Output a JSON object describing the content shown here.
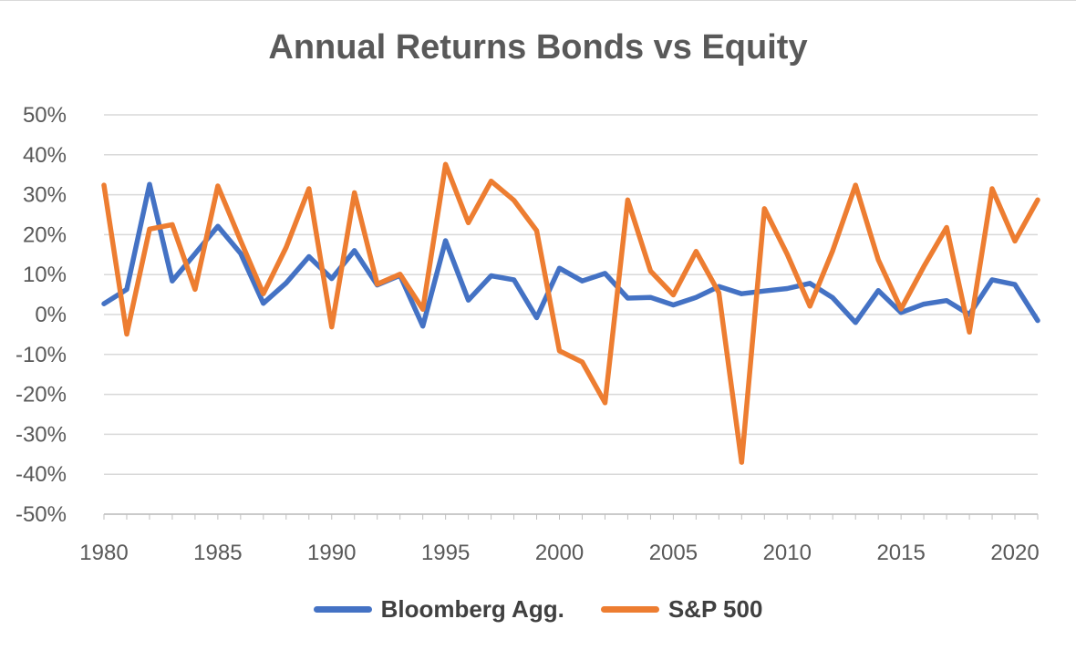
{
  "chart_data": {
    "type": "line",
    "title": "Annual Returns Bonds vs Equity",
    "xlabel": "",
    "ylabel": "",
    "x": [
      1980,
      1981,
      1982,
      1983,
      1984,
      1985,
      1986,
      1987,
      1988,
      1989,
      1990,
      1991,
      1992,
      1993,
      1994,
      1995,
      1996,
      1997,
      1998,
      1999,
      2000,
      2001,
      2002,
      2003,
      2004,
      2005,
      2006,
      2007,
      2008,
      2009,
      2010,
      2011,
      2012,
      2013,
      2014,
      2015,
      2016,
      2017,
      2018,
      2019,
      2020,
      2021
    ],
    "x_ticks": [
      "1980",
      "1985",
      "1990",
      "1995",
      "2000",
      "2005",
      "2010",
      "2015",
      "2020"
    ],
    "xlim": [
      1980,
      2021
    ],
    "ylim": [
      -50,
      50
    ],
    "y_ticks": [
      "-50%",
      "-40%",
      "-30%",
      "-20%",
      "-10%",
      "0%",
      "10%",
      "20%",
      "30%",
      "40%",
      "50%"
    ],
    "y_unit": "%",
    "grid": true,
    "legend_position": "bottom",
    "series": [
      {
        "name": "Bloomberg Agg.",
        "color": "#4472c4",
        "values": [
          2.7,
          6.3,
          32.6,
          8.4,
          15.2,
          22.1,
          15.3,
          2.8,
          7.9,
          14.5,
          9.0,
          16.0,
          7.4,
          9.8,
          -2.9,
          18.5,
          3.6,
          9.7,
          8.7,
          -0.8,
          11.6,
          8.4,
          10.3,
          4.1,
          4.3,
          2.4,
          4.3,
          7.0,
          5.2,
          5.9,
          6.5,
          7.8,
          4.2,
          -2.0,
          6.0,
          0.5,
          2.6,
          3.5,
          0.0,
          8.7,
          7.5,
          -1.5
        ]
      },
      {
        "name": "S&P 500",
        "color": "#ed7d31",
        "values": [
          32.4,
          -4.9,
          21.4,
          22.5,
          6.3,
          32.2,
          18.5,
          5.2,
          16.8,
          31.5,
          -3.1,
          30.5,
          7.6,
          10.1,
          1.3,
          37.6,
          23.0,
          33.4,
          28.6,
          21.0,
          -9.1,
          -11.9,
          -22.1,
          28.7,
          10.9,
          4.9,
          15.8,
          5.5,
          -37.0,
          26.5,
          15.1,
          2.1,
          16.0,
          32.4,
          13.7,
          1.4,
          12.0,
          21.8,
          -4.4,
          31.5,
          18.4,
          28.7
        ]
      }
    ]
  }
}
